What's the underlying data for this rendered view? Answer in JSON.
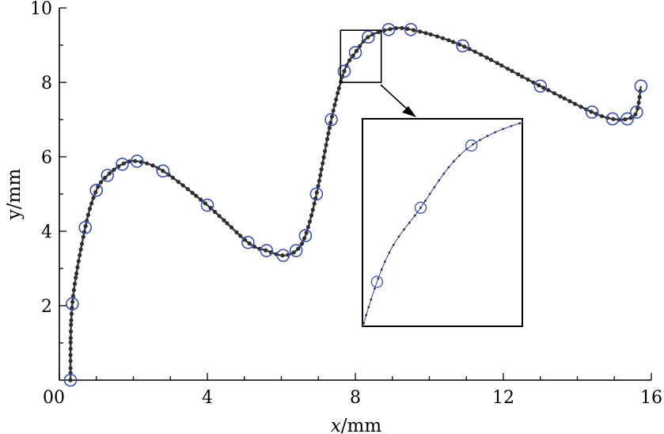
{
  "chart_data": {
    "type": "line",
    "title": "",
    "xlabel": "x/mm",
    "xlabel_parts": {
      "var": "x",
      "unit": "/mm"
    },
    "ylabel": "y/mm",
    "xlim": [
      0,
      16
    ],
    "ylim": [
      0,
      10
    ],
    "x_ticks": [
      0,
      4,
      8,
      12,
      16
    ],
    "x_tick_labels": [
      "0",
      "4",
      "8",
      "12",
      "16"
    ],
    "y_ticks": [
      2,
      4,
      6,
      8,
      10
    ],
    "y_tick_labels": [
      "2",
      "4",
      "6",
      "8",
      "10"
    ],
    "grid": false,
    "control_points": [
      [
        0.3,
        0.0
      ],
      [
        0.35,
        2.05
      ],
      [
        0.7,
        4.1
      ],
      [
        1.0,
        5.1
      ],
      [
        1.3,
        5.5
      ],
      [
        1.7,
        5.8
      ],
      [
        2.1,
        5.88
      ],
      [
        2.8,
        5.62
      ],
      [
        4.0,
        4.7
      ],
      [
        5.1,
        3.7
      ],
      [
        5.6,
        3.48
      ],
      [
        6.05,
        3.35
      ],
      [
        6.4,
        3.48
      ],
      [
        6.65,
        3.88
      ],
      [
        6.95,
        5.0
      ],
      [
        7.35,
        7.0
      ],
      [
        7.7,
        8.3
      ],
      [
        8.0,
        8.8
      ],
      [
        8.35,
        9.22
      ],
      [
        8.9,
        9.42
      ],
      [
        9.5,
        9.42
      ],
      [
        10.9,
        8.98
      ],
      [
        13.0,
        7.9
      ],
      [
        14.4,
        7.2
      ],
      [
        14.95,
        7.02
      ],
      [
        15.35,
        7.02
      ],
      [
        15.6,
        7.2
      ],
      [
        15.72,
        7.9
      ]
    ],
    "zoom_region": {
      "x": [
        7.6,
        8.7
      ],
      "y": [
        8.0,
        9.4
      ]
    }
  }
}
